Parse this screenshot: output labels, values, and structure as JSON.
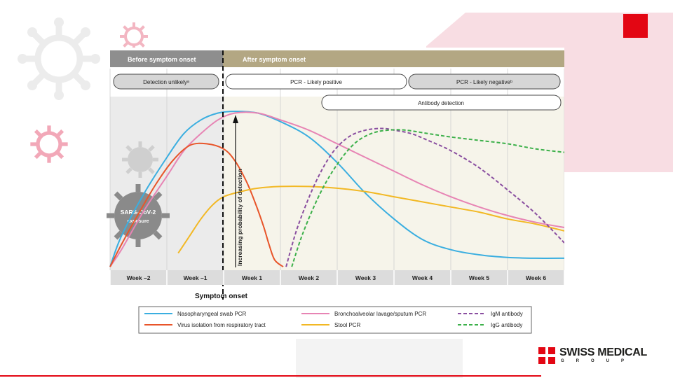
{
  "slide": {
    "brand_name": "SWISS MEDICAL",
    "brand_sub": "GROUP",
    "colors": {
      "accent_red": "#e30613",
      "accent_pink": "#f8dde3"
    }
  },
  "chart_data": {
    "type": "line",
    "title": "",
    "phases": [
      "Before symptom onset",
      "After symptom onset"
    ],
    "status_pills": [
      "Detection unlikelyᵃ",
      "PCR - Likely positive",
      "PCR - Likely negativeᵇ",
      "Antibody detection"
    ],
    "categories": [
      "Week –2",
      "Week –1",
      "Week 1",
      "Week 2",
      "Week 3",
      "Week 4",
      "Week 5",
      "Week 6"
    ],
    "x_range": [
      -2,
      6
    ],
    "ylim": [
      0,
      1
    ],
    "ylabel": "Increasing probability of detection",
    "xlabel": "Symptom onset",
    "virus_label": "SARS-CoV-2 exposure",
    "grid": true,
    "legend_position": "bottom",
    "series": [
      {
        "name": "Nasopharyngeal swab PCR",
        "color": "#3aaee0",
        "dash": false,
        "x": [
          -2,
          -1.8,
          -1.4,
          -1,
          -0.7,
          -0.4,
          -0.1,
          0.2,
          0.6,
          1,
          1.5,
          2,
          2.5,
          3,
          3.5,
          4,
          4.5,
          5,
          5.5,
          6
        ],
        "y": [
          0.02,
          0.2,
          0.45,
          0.66,
          0.8,
          0.88,
          0.92,
          0.93,
          0.92,
          0.87,
          0.78,
          0.63,
          0.45,
          0.3,
          0.18,
          0.12,
          0.09,
          0.075,
          0.07,
          0.07
        ]
      },
      {
        "name": "Bronchoalveolar lavage/sputum PCR",
        "color": "#e784b4",
        "dash": false,
        "x": [
          -2,
          -1.8,
          -1.4,
          -1,
          -0.7,
          -0.4,
          -0.1,
          0.2,
          0.6,
          1,
          1.5,
          2,
          2.5,
          3,
          3.5,
          4,
          4.5,
          5,
          5.5,
          6
        ],
        "y": [
          0.02,
          0.12,
          0.35,
          0.55,
          0.7,
          0.8,
          0.88,
          0.92,
          0.92,
          0.88,
          0.82,
          0.74,
          0.66,
          0.58,
          0.5,
          0.43,
          0.37,
          0.32,
          0.28,
          0.25
        ]
      },
      {
        "name": "Virus isolation from respiratory tract",
        "color": "#e8552a",
        "dash": false,
        "x": [
          -2,
          -1.8,
          -1.5,
          -1.2,
          -0.9,
          -0.6,
          -0.3,
          0,
          0.2,
          0.4,
          0.55,
          0.7,
          0.8,
          0.9,
          1.05
        ],
        "y": [
          0.02,
          0.15,
          0.33,
          0.5,
          0.64,
          0.73,
          0.74,
          0.71,
          0.64,
          0.52,
          0.4,
          0.26,
          0.15,
          0.06,
          0.02
        ]
      },
      {
        "name": "Stool PCR",
        "color": "#f2b824",
        "dash": false,
        "x": [
          -0.8,
          -0.6,
          -0.4,
          -0.2,
          0,
          0.3,
          0.6,
          1,
          1.5,
          2,
          2.5,
          3,
          3.5,
          4,
          4.5,
          5,
          5.5,
          6
        ],
        "y": [
          0.1,
          0.2,
          0.3,
          0.38,
          0.43,
          0.46,
          0.48,
          0.49,
          0.49,
          0.48,
          0.46,
          0.43,
          0.4,
          0.37,
          0.34,
          0.3,
          0.27,
          0.23
        ]
      },
      {
        "name": "IgM antibody",
        "color": "#8a4fa0",
        "dash": true,
        "x": [
          1.1,
          1.3,
          1.6,
          1.9,
          2.2,
          2.5,
          2.8,
          3,
          3.3,
          3.6,
          4,
          4.5,
          5,
          5.5,
          6
        ],
        "y": [
          0.02,
          0.25,
          0.5,
          0.68,
          0.78,
          0.82,
          0.83,
          0.82,
          0.8,
          0.76,
          0.7,
          0.6,
          0.47,
          0.33,
          0.16
        ]
      },
      {
        "name": "IgG antibody",
        "color": "#3cb04a",
        "dash": true,
        "x": [
          1.2,
          1.4,
          1.7,
          2,
          2.3,
          2.6,
          2.9,
          3.2,
          3.6,
          4,
          4.5,
          5,
          5.5,
          6
        ],
        "y": [
          0.02,
          0.22,
          0.45,
          0.62,
          0.74,
          0.8,
          0.82,
          0.82,
          0.8,
          0.78,
          0.76,
          0.74,
          0.71,
          0.69
        ]
      }
    ]
  }
}
